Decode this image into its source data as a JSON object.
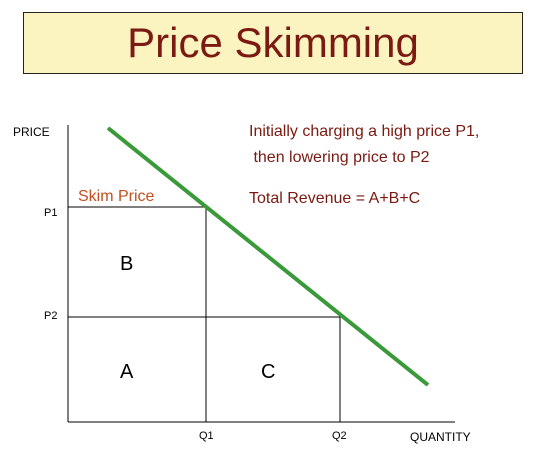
{
  "title": "Price Skimming",
  "annotations": {
    "line1": "Initially charging a high price P1,",
    "line2": " then lowering price to P2",
    "revenue": "Total Revenue = A+B+C",
    "skim": "Skim Price"
  },
  "axes": {
    "y_label": "PRICE",
    "x_label": "QUANTITY",
    "p1": "P1",
    "p2": "P2",
    "q1": "Q1",
    "q2": "Q2"
  },
  "regions": {
    "a": "A",
    "b": "B",
    "c": "C"
  },
  "colors": {
    "title_text": "#7a1a12",
    "title_bg": "#fbf4c0",
    "annotation": "#7a1a12",
    "skim": "#c0501f",
    "demand_line": "#3a9a3a"
  }
}
